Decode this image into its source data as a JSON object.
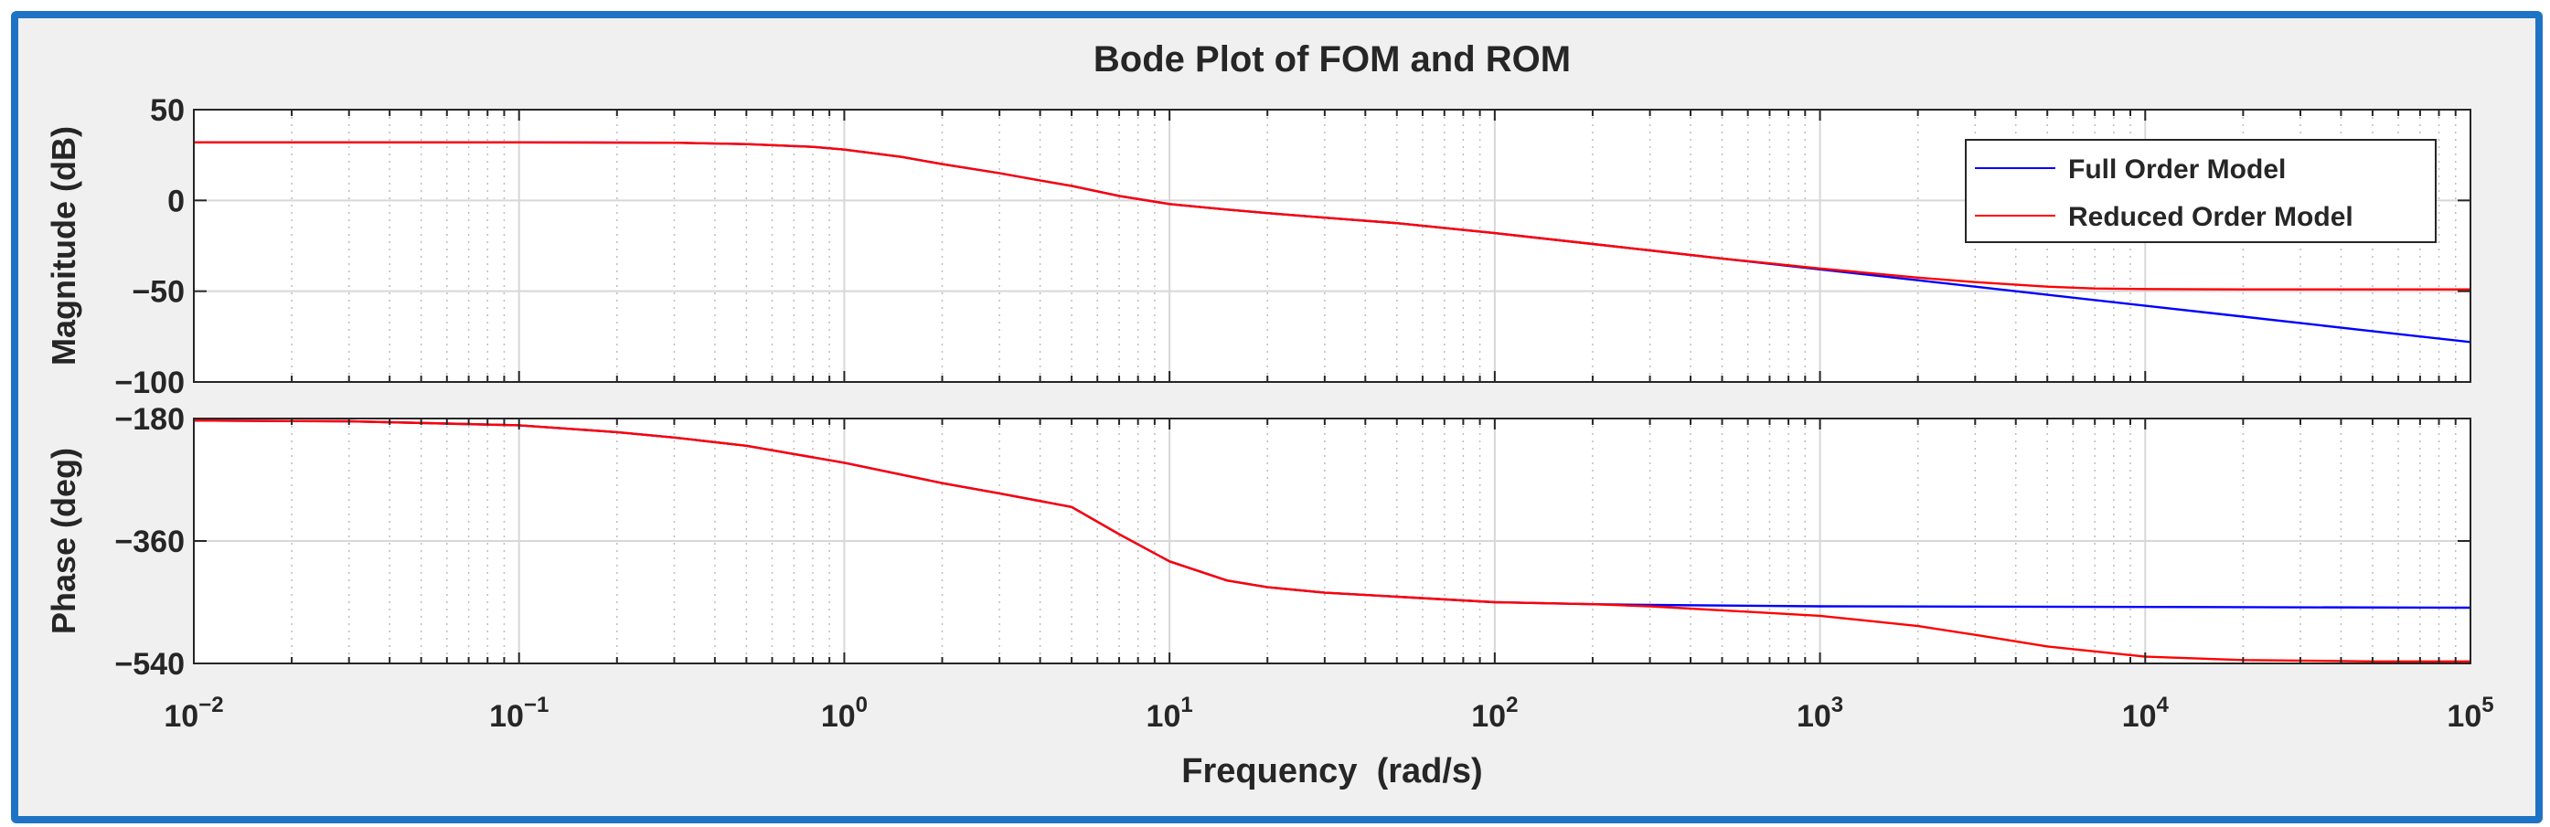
{
  "colors": {
    "full_order": "#0000ff",
    "reduced_order": "#ff0000",
    "frame": "#1f73c4",
    "figure_bg": "#f0f0f0",
    "axes_bg": "#ffffff"
  },
  "chart_data": [
    {
      "type": "line",
      "panel": "magnitude",
      "title": "Bode Plot of FOM and ROM",
      "ylabel": "Magnitude (dB)",
      "xlabel": "",
      "xscale": "log",
      "xlim": [
        0.01,
        100000
      ],
      "ylim": [
        -100,
        50
      ],
      "yticks": [
        50,
        0,
        -50,
        -100
      ],
      "yticklabels": [
        "50",
        "0",
        "−50",
        "−100"
      ],
      "grid": true,
      "legend": {
        "location": "top-right",
        "entries": [
          "Full Order Model",
          "Reduced Order Model"
        ]
      },
      "series": [
        {
          "name": "Full Order Model",
          "color": "#0000ff",
          "x": [
            0.01,
            0.03,
            0.1,
            0.3,
            0.5,
            0.8,
            1,
            1.5,
            2,
            3,
            4,
            5,
            7,
            10,
            15,
            20,
            30,
            50,
            100,
            200,
            300,
            500,
            1000,
            2000,
            3000,
            5000,
            10000,
            20000,
            50000,
            100000
          ],
          "values": [
            32,
            32,
            32,
            31.8,
            31,
            29.5,
            28,
            24,
            20,
            15,
            11,
            8,
            2.5,
            -2,
            -5,
            -7,
            -9.5,
            -12.5,
            -18,
            -24,
            -27.5,
            -32,
            -38,
            -44,
            -47.5,
            -52,
            -58,
            -64,
            -72,
            -78
          ]
        },
        {
          "name": "Reduced Order Model",
          "color": "#ff0000",
          "x": [
            0.01,
            0.03,
            0.1,
            0.3,
            0.5,
            0.8,
            1,
            1.5,
            2,
            3,
            4,
            5,
            7,
            10,
            15,
            20,
            30,
            50,
            100,
            200,
            300,
            500,
            1000,
            2000,
            3000,
            5000,
            7000,
            10000,
            20000,
            50000,
            100000
          ],
          "values": [
            32,
            32,
            32,
            31.8,
            31,
            29.5,
            28,
            24,
            20,
            15,
            11,
            8,
            2.5,
            -2,
            -5,
            -7,
            -9.5,
            -12.5,
            -18,
            -24,
            -27.5,
            -32,
            -37.5,
            -42.5,
            -45,
            -47.5,
            -48.5,
            -48.8,
            -49,
            -49,
            -49
          ]
        }
      ]
    },
    {
      "type": "line",
      "panel": "phase",
      "title": "",
      "ylabel": "Phase (deg)",
      "xlabel": "Frequency  (rad/s)",
      "xscale": "log",
      "xlim": [
        0.01,
        100000
      ],
      "ylim": [
        -540,
        -180
      ],
      "yticks": [
        -180,
        -360,
        -540
      ],
      "yticklabels": [
        "−180",
        "−360",
        "−540"
      ],
      "xticks": [
        0.01,
        0.1,
        1,
        10,
        100,
        1000,
        10000,
        100000
      ],
      "xticklabels": [
        {
          "base": "10",
          "exp": "−2"
        },
        {
          "base": "10",
          "exp": "−1"
        },
        {
          "base": "10",
          "exp": "0"
        },
        {
          "base": "10",
          "exp": "1"
        },
        {
          "base": "10",
          "exp": "2"
        },
        {
          "base": "10",
          "exp": "3"
        },
        {
          "base": "10",
          "exp": "4"
        },
        {
          "base": "10",
          "exp": "5"
        }
      ],
      "grid": true,
      "series": [
        {
          "name": "Full Order Model",
          "color": "#0000ff",
          "x": [
            0.01,
            0.03,
            0.1,
            0.2,
            0.3,
            0.5,
            1,
            2,
            3,
            5,
            7,
            10,
            15,
            20,
            30,
            50,
            100,
            200,
            300,
            1000,
            10000,
            100000
          ],
          "values": [
            -183,
            -184,
            -190,
            -200,
            -208,
            -220,
            -245,
            -275,
            -290,
            -310,
            -350,
            -390,
            -418,
            -428,
            -436,
            -442,
            -450,
            -453,
            -454,
            -456,
            -457,
            -458
          ]
        },
        {
          "name": "Reduced Order Model",
          "color": "#ff0000",
          "x": [
            0.01,
            0.03,
            0.1,
            0.2,
            0.3,
            0.5,
            1,
            2,
            3,
            5,
            7,
            10,
            15,
            20,
            30,
            50,
            100,
            200,
            300,
            500,
            1000,
            2000,
            3000,
            5000,
            10000,
            20000,
            50000,
            100000
          ],
          "values": [
            -183,
            -184,
            -190,
            -200,
            -208,
            -220,
            -245,
            -275,
            -290,
            -310,
            -350,
            -390,
            -418,
            -428,
            -436,
            -442,
            -450,
            -453,
            -456,
            -462,
            -470,
            -485,
            -498,
            -515,
            -530,
            -535,
            -537,
            -537
          ]
        }
      ]
    }
  ]
}
